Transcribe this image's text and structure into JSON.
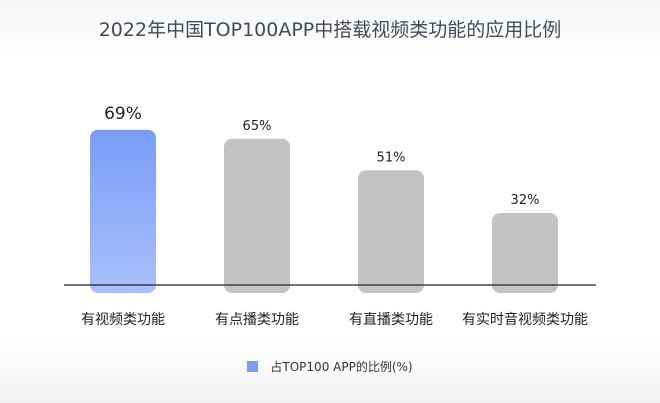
{
  "chart_data": {
    "type": "bar",
    "title": "2022年中国TOP100APP中搭载视频类功能的应用比例",
    "categories": [
      "有视频类功能",
      "有点播类功能",
      "有直播类功能",
      "有实时音视频类功能"
    ],
    "series": [
      {
        "name": "占TOP100 APP的比例(%)",
        "values": [
          69,
          65,
          51,
          32
        ]
      }
    ],
    "data_labels": [
      "69%",
      "65%",
      "51%",
      "32%"
    ],
    "ylim": [
      0,
      100
    ],
    "grid": false,
    "legend_position": "bottom-center",
    "colors": {
      "highlight_top": "#7a9cf6",
      "highlight_bottom": "#a9c0fb",
      "default_bar": "#c3c3c3",
      "axis": "#222222",
      "text": "#222222"
    }
  }
}
